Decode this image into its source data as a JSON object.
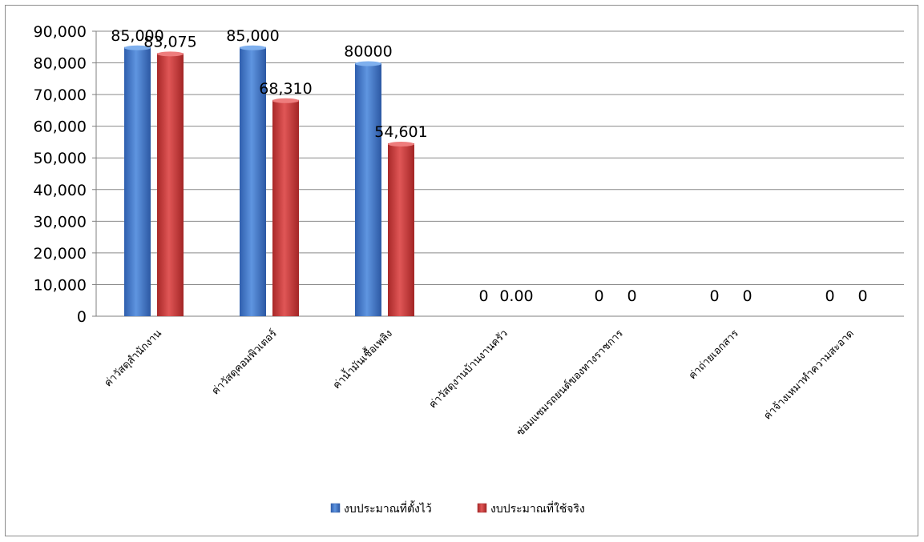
{
  "chart_data": {
    "type": "bar",
    "categories": [
      "ค่าวัสดุสำนักงาน",
      "ค่าวัสดุคอมพิวเตอร์",
      "ค่าน้ำมันเชื้อเพลิง",
      "ค่าวัสดุงานบ้านงานครัว",
      "ซ่อมแซมรถยนต์ของทางราชการ",
      "ค่าถ่ายเอกสาร",
      "ค่าจ้างเหมาทำความสะอาด"
    ],
    "series": [
      {
        "name": "งบประมาณที่ตั้งไว้",
        "color": "#4a7fd0",
        "values": [
          85000,
          85000,
          80000,
          0,
          0,
          0,
          0
        ],
        "labels": [
          "85,000",
          "85,000",
          "80000",
          "0",
          "0",
          "0",
          "0"
        ]
      },
      {
        "name": "งบประมาณที่ใช้จริง",
        "color": "#cc3b3b",
        "values": [
          83075,
          68310,
          54601,
          0,
          0,
          0,
          0
        ],
        "labels": [
          "83,075",
          "68,310",
          "54,601",
          "0.00",
          "0",
          "0",
          "0"
        ]
      }
    ],
    "ylim": [
      0,
      90000
    ],
    "yticks": [
      "0",
      "10,000",
      "20,000",
      "30,000",
      "40,000",
      "50,000",
      "60,000",
      "70,000",
      "80,000",
      "90,000"
    ],
    "grid": true,
    "legend_position": "bottom"
  }
}
